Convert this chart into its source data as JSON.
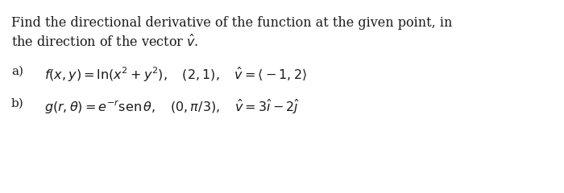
{
  "background_color": "#ffffff",
  "fig_width": 7.0,
  "fig_height": 2.4,
  "dpi": 100,
  "text_color": "#1a1a1a",
  "font_size": 11.5,
  "font_size_parts": 11.5,
  "header_line1": "Find the directional derivative of the function at the given point, in",
  "header_line2": "the direction of the vector $\\hat{v}$.",
  "part_a_label": "a)",
  "part_b_label": "b)"
}
